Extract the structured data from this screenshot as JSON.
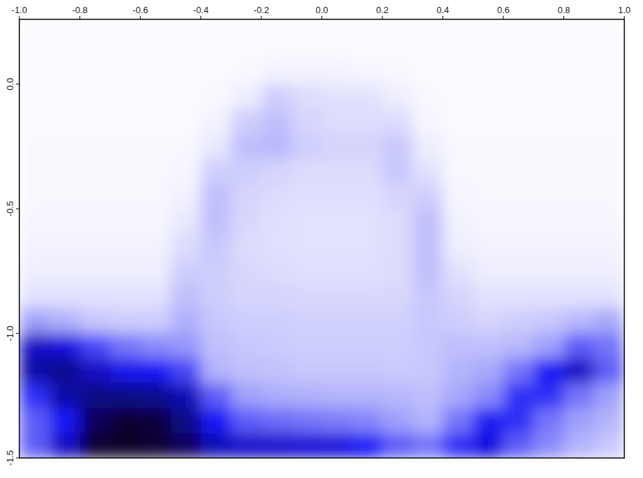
{
  "chart_data": {
    "type": "heatmap",
    "color": "#1414f5",
    "x": [
      -0.95,
      -0.85,
      -0.75,
      -0.65,
      -0.55,
      -0.45,
      -0.35,
      -0.25,
      -0.15,
      -0.05,
      0.05,
      0.15,
      0.25,
      0.35,
      0.45,
      0.55,
      0.65,
      0.75,
      0.85,
      0.95
    ],
    "y": [
      0.25,
      0.15,
      0.05,
      -0.05,
      -0.15,
      -0.25,
      -0.35,
      -0.45,
      -0.55,
      -0.65,
      -0.75,
      -0.85,
      -0.95,
      -1.05,
      -1.15,
      -1.25,
      -1.35,
      -1.45
    ],
    "z": [
      [
        2,
        2,
        2,
        2,
        2,
        2,
        2,
        2,
        2,
        2,
        2,
        2,
        2,
        2,
        2,
        2,
        2,
        2,
        2,
        2
      ],
      [
        3,
        3,
        3,
        3,
        3,
        3,
        3,
        3,
        3,
        3,
        3,
        3,
        3,
        3,
        3,
        3,
        3,
        3,
        3,
        3
      ],
      [
        3,
        3,
        3,
        3,
        3,
        3,
        3,
        4,
        6,
        6,
        6,
        5,
        4,
        3,
        3,
        3,
        3,
        3,
        3,
        3
      ],
      [
        3,
        3,
        3,
        3,
        3,
        3,
        4,
        8,
        18,
        14,
        12,
        12,
        8,
        4,
        3,
        3,
        3,
        3,
        3,
        3
      ],
      [
        3,
        3,
        3,
        3,
        3,
        3,
        6,
        18,
        22,
        16,
        14,
        14,
        14,
        5,
        3,
        3,
        3,
        3,
        3,
        3
      ],
      [
        4,
        4,
        4,
        4,
        4,
        4,
        10,
        22,
        24,
        18,
        16,
        16,
        20,
        8,
        4,
        4,
        4,
        4,
        4,
        4
      ],
      [
        4,
        4,
        4,
        4,
        4,
        5,
        18,
        18,
        16,
        14,
        14,
        14,
        20,
        12,
        4,
        4,
        4,
        4,
        4,
        4
      ],
      [
        4,
        4,
        4,
        4,
        4,
        7,
        22,
        16,
        14,
        13,
        13,
        13,
        16,
        18,
        5,
        4,
        4,
        4,
        4,
        4
      ],
      [
        5,
        5,
        5,
        5,
        5,
        10,
        22,
        15,
        13,
        12,
        12,
        12,
        14,
        22,
        6,
        5,
        5,
        5,
        5,
        5
      ],
      [
        6,
        6,
        6,
        6,
        6,
        14,
        20,
        14,
        13,
        12,
        12,
        12,
        14,
        22,
        8,
        6,
        6,
        6,
        6,
        6
      ],
      [
        8,
        8,
        8,
        8,
        8,
        18,
        18,
        15,
        14,
        13,
        13,
        13,
        14,
        22,
        12,
        8,
        8,
        8,
        8,
        8
      ],
      [
        12,
        12,
        12,
        12,
        12,
        22,
        18,
        16,
        16,
        15,
        15,
        15,
        15,
        20,
        16,
        12,
        12,
        12,
        12,
        12
      ],
      [
        30,
        26,
        20,
        18,
        18,
        26,
        20,
        18,
        18,
        17,
        17,
        17,
        17,
        20,
        18,
        16,
        18,
        20,
        24,
        28
      ],
      [
        70,
        65,
        50,
        40,
        35,
        32,
        22,
        20,
        19,
        18,
        18,
        18,
        18,
        20,
        22,
        22,
        24,
        30,
        45,
        40
      ],
      [
        75,
        80,
        70,
        62,
        60,
        50,
        25,
        22,
        21,
        20,
        20,
        20,
        19,
        20,
        25,
        28,
        40,
        60,
        70,
        45
      ],
      [
        55,
        75,
        82,
        82,
        80,
        72,
        45,
        30,
        27,
        26,
        25,
        25,
        24,
        22,
        28,
        35,
        55,
        55,
        40,
        30
      ],
      [
        45,
        60,
        90,
        98,
        96,
        82,
        60,
        45,
        42,
        40,
        38,
        36,
        30,
        25,
        40,
        58,
        55,
        40,
        30,
        25
      ],
      [
        45,
        70,
        98,
        100,
        98,
        90,
        72,
        68,
        68,
        66,
        65,
        60,
        45,
        40,
        55,
        65,
        45,
        35,
        25,
        20
      ]
    ],
    "zlim": [
      0,
      100
    ],
    "xlim": [
      -1,
      1
    ],
    "ylim": [
      -1.5,
      0.26
    ],
    "xticks": [
      {
        "value": -1,
        "label": "-1.0"
      },
      -0.8,
      -0.6,
      -0.4,
      -0.2,
      {
        "value": 0,
        "label": "0.0"
      },
      0.2,
      0.4,
      0.6,
      0.8,
      {
        "value": 1,
        "label": "1.0"
      }
    ],
    "yticks": [
      {
        "value": 0,
        "label": "0.0"
      },
      -0.5,
      {
        "value": -1,
        "label": "-1.0"
      },
      {
        "value": -1.5,
        "label": "-1.5"
      }
    ]
  }
}
